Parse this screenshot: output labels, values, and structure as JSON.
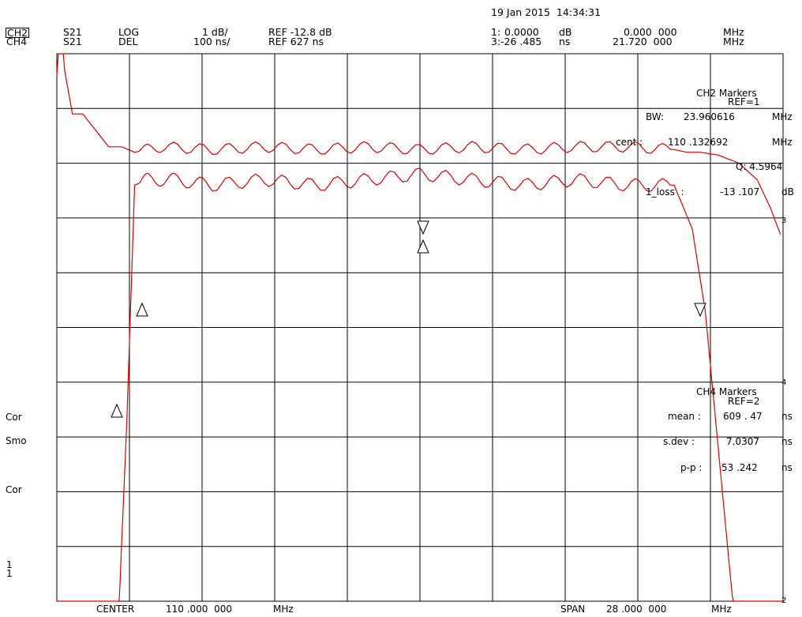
{
  "timestamp": "19 Jan 2015  14:34:31",
  "header": {
    "ch2": {
      "channel": "CH2",
      "param": "S21",
      "format": "LOG",
      "scale": "1 dB/",
      "ref": "REF -12.8 dB"
    },
    "ch4": {
      "channel": "CH4",
      "param": "S21",
      "format": "DEL",
      "scale": "100 ns/",
      "ref": "REF 627 ns"
    },
    "marker1": {
      "num": "1:",
      "value": "0.0000",
      "unit": "dB",
      "freq": "0.000  000",
      "freq_unit": "MHz"
    },
    "marker3": {
      "num": "3:",
      "value": "-26 .485",
      "unit": "ns",
      "freq": "21.720  000",
      "freq_unit": "MHz"
    }
  },
  "ch2_markers": {
    "title": "CH2 Markers",
    "ref": "REF=1",
    "bw_label": "BW:",
    "bw_value": "23.960616",
    "bw_unit": "MHz",
    "cent_label": "cent :",
    "cent_value": "110 .132692",
    "cent_unit": "MHz",
    "q": "Q: 4.5964",
    "loss_label": "1_loss  :",
    "loss_value": "-13 .107",
    "loss_unit": "dB"
  },
  "ch4_markers": {
    "title": "CH4 Markers",
    "ref": "REF=2",
    "mean_label": "mean :",
    "mean_value": "609 . 47",
    "mean_unit": "ns",
    "sdev_label": "s.dev :",
    "sdev_value": "7.0307",
    "sdev_unit": "ns",
    "pp_label": "p-p :",
    "pp_value": "53 .242",
    "pp_unit": "ns"
  },
  "left_labels": [
    "Cor",
    "Smo",
    "Cor",
    "1",
    "1"
  ],
  "right_ref_labels": [
    "3",
    "4",
    "2"
  ],
  "footer": {
    "center_label": "CENTER",
    "center_value": "110 .000  000",
    "center_unit": "MHz",
    "span_label": "SPAN",
    "span_value": "28 .000  000",
    "span_unit": "MHz"
  },
  "chart_data": {
    "type": "line",
    "x_unit": "MHz",
    "x_range": [
      96,
      124
    ],
    "grid": true,
    "grid_divisions": {
      "x": 10,
      "y": 10
    },
    "trace_color": "#e00000",
    "series": [
      {
        "name": "CH2 S21 LOG",
        "x": [
          96.0,
          96.2,
          96.6,
          97.2,
          97.8,
          98.3,
          98.7,
          99.0,
          99.5,
          100.5,
          102,
          104,
          106,
          108,
          110,
          112,
          114,
          116,
          118,
          119.8,
          120.5,
          121.0,
          121.5,
          122.0,
          122.5,
          123.0,
          123.5,
          124.0
        ],
        "y": [
          -26.5,
          -26.5,
          -26.5,
          -26.5,
          -26.5,
          -22.0,
          -17.5,
          -13.2,
          -13.1,
          -13.1,
          -13.2,
          -13.1,
          -13.2,
          -13.1,
          -13.0,
          -13.1,
          -13.2,
          -13.1,
          -13.2,
          -13.2,
          -14.0,
          -15.5,
          -18.0,
          -20.5,
          -23.0,
          -25.5,
          -26.5,
          -26.5
        ]
      },
      {
        "name": "CH4 S21 DEL",
        "x": [
          96.0,
          96.15,
          96.3,
          96.6,
          97.0,
          97.5,
          98.0,
          98.5,
          99.0,
          100,
          102,
          104,
          106,
          108,
          110,
          112,
          114,
          116,
          118,
          119.8,
          120.3,
          120.8,
          121.5,
          122.3,
          123.0,
          123.5,
          123.9
        ],
        "y": [
          1087,
          1187,
          1097,
          1017,
          1017,
          987,
          957,
          957,
          947,
          957,
          952,
          957,
          952,
          957,
          952,
          957,
          952,
          957,
          957,
          952,
          947,
          947,
          942,
          927,
          897,
          847,
          797
        ]
      }
    ]
  }
}
